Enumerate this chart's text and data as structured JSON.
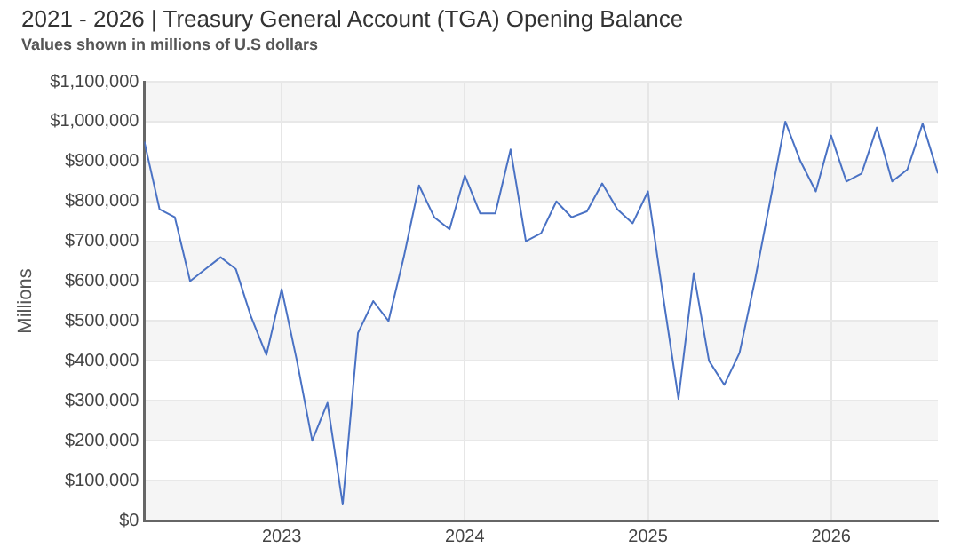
{
  "chart_data": {
    "type": "line",
    "title": "2021 - 2026 | Treasury General Account (TGA) Opening Balance",
    "subtitle": "Values shown in millions of U.S dollars",
    "ylabel": "Millions",
    "x": [
      "2022-04",
      "2022-05",
      "2022-06",
      "2022-07",
      "2022-08",
      "2022-09",
      "2022-10",
      "2022-11",
      "2022-12",
      "2023-01",
      "2023-02",
      "2023-03",
      "2023-04",
      "2023-05",
      "2023-06",
      "2023-07",
      "2023-08",
      "2023-09",
      "2023-10",
      "2023-11",
      "2023-12",
      "2024-01",
      "2024-02",
      "2024-03",
      "2024-04",
      "2024-05",
      "2024-06",
      "2024-07",
      "2024-08",
      "2024-09",
      "2024-10",
      "2024-11",
      "2024-12",
      "2025-01",
      "2025-02",
      "2025-03",
      "2025-04",
      "2025-05",
      "2025-06",
      "2025-07",
      "2025-08",
      "2025-09",
      "2025-10",
      "2025-11",
      "2025-12",
      "2026-01",
      "2026-02",
      "2026-03",
      "2026-04",
      "2026-05",
      "2026-06",
      "2026-07",
      "2026-08"
    ],
    "series": [
      {
        "color": "#4a72c4",
        "values": [
          950000,
          780000,
          760000,
          600000,
          630000,
          660000,
          630000,
          510000,
          415000,
          580000,
          400000,
          200000,
          295000,
          40000,
          470000,
          550000,
          500000,
          660000,
          840000,
          760000,
          730000,
          865000,
          770000,
          770000,
          930000,
          700000,
          720000,
          800000,
          760000,
          775000,
          845000,
          780000,
          745000,
          825000,
          560000,
          305000,
          620000,
          400000,
          340000,
          420000,
          600000,
          800000,
          1000000,
          900000,
          825000,
          965000,
          850000,
          870000,
          985000,
          850000,
          880000,
          995000,
          870000
        ]
      }
    ],
    "xlim": [
      "2022-04",
      "2026-08"
    ],
    "xticks": [
      "2023",
      "2024",
      "2025",
      "2026"
    ],
    "ylim": [
      0,
      1100000
    ],
    "yticks": [
      {
        "value": 0,
        "label": "$0"
      },
      {
        "value": 100000,
        "label": "$100,000"
      },
      {
        "value": 200000,
        "label": "$200,000"
      },
      {
        "value": 300000,
        "label": "$300,000"
      },
      {
        "value": 400000,
        "label": "$400,000"
      },
      {
        "value": 500000,
        "label": "$500,000"
      },
      {
        "value": 600000,
        "label": "$600,000"
      },
      {
        "value": 700000,
        "label": "$700,000"
      },
      {
        "value": 800000,
        "label": "$800,000"
      },
      {
        "value": 900000,
        "label": "$900,000"
      },
      {
        "value": 1000000,
        "label": "$1,000,000"
      },
      {
        "value": 1100000,
        "label": "$1,100,000"
      }
    ],
    "grid": true,
    "marker": "none",
    "line_style": "solid"
  }
}
